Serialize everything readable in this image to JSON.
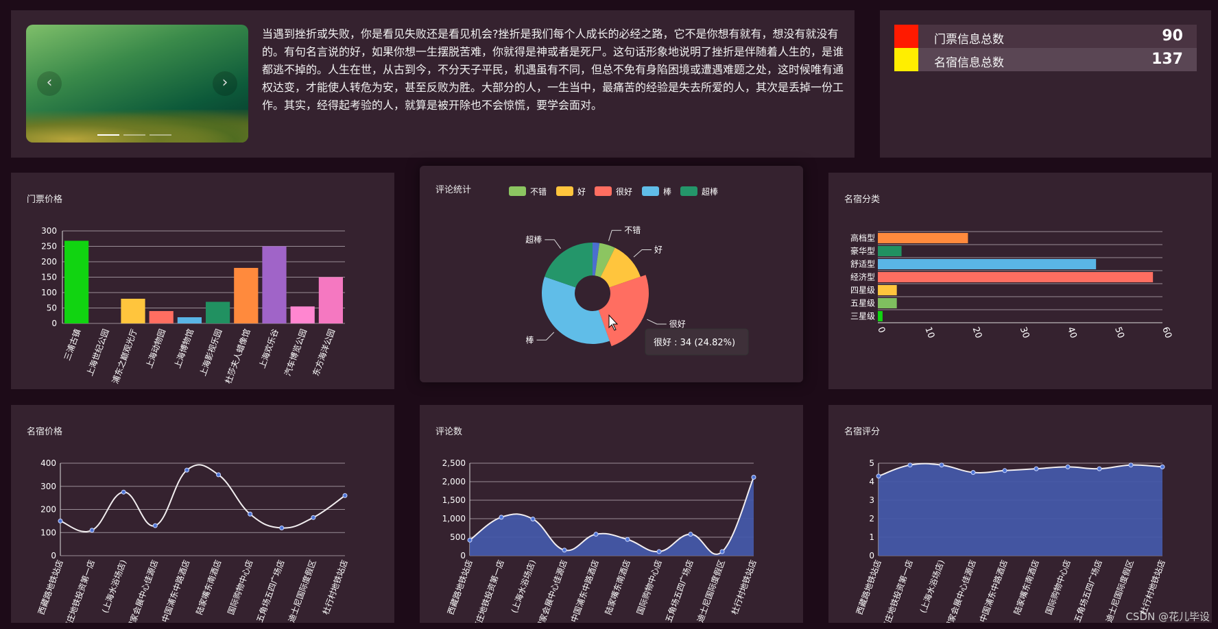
{
  "intro": {
    "text": "当遇到挫折或失败，你是看见失败还是看见机会?挫折是我们每个人成长的必经之路，它不是你想有就有，想没有就没有的。有句名言说的好，如果你想一生摆脱苦难，你就得是神或者是死尸。这句话形象地说明了挫折是伴随着人生的，是谁都逃不掉的。人生在世，从古到今，不分天子平民，机遇虽有不同，但总不免有身陷困境或遭遇难题之处，这时候唯有通权达变，才能使人转危为安，甚至反败为胜。大部分的人，一生当中，最痛苦的经验是失去所爱的人，其次是丢掉一份工作。其实，经得起考验的人，就算是被开除也不会惊慌，要学会面对。",
    "prev": "‹",
    "next": "›"
  },
  "stats": [
    {
      "label": "门票信息总数",
      "value": "90",
      "color": "#ff1a00"
    },
    {
      "label": "名宿信息总数",
      "value": "137",
      "color": "#ffee00"
    }
  ],
  "watermark": "CSDN @花儿毕设",
  "chart_data": [
    {
      "id": "ticket",
      "type": "bar",
      "title": "门票价格",
      "categories": [
        "三浦古镇",
        "上海世纪公园",
        "浦东之巅观光厅",
        "上海动物园",
        "上海博物馆",
        "上海影视乐园",
        "杜莎夫人蜡像馆",
        "上海欢乐谷",
        "汽车博览公园",
        "东方海洋公园"
      ],
      "values": [
        268,
        0,
        80,
        40,
        20,
        70,
        180,
        250,
        55,
        150
      ],
      "colors": [
        "#11d411",
        "#7fbf5f",
        "#ffc53d",
        "#ff6e61",
        "#5ab5e6",
        "#219161",
        "#ff8a3d",
        "#a064c8",
        "#ff86d0",
        "#f578c1"
      ],
      "ylim": [
        0,
        300
      ],
      "yticks": [
        0,
        50,
        100,
        150,
        200,
        250,
        300
      ]
    },
    {
      "id": "review",
      "type": "pie",
      "title": "评论统计",
      "legend": [
        "不错",
        "好",
        "很好",
        "棒",
        "超棒"
      ],
      "slices": [
        {
          "name": "",
          "value": 3,
          "color": "#4b6fcf"
        },
        {
          "name": "不错",
          "value": 7,
          "color": "#8cc561"
        },
        {
          "name": "好",
          "value": 17,
          "color": "#ffc53d"
        },
        {
          "name": "很好",
          "value": 34,
          "color": "#ff6e61"
        },
        {
          "name": "棒",
          "value": 49,
          "color": "#60bde8"
        },
        {
          "name": "超棒",
          "value": 27,
          "color": "#24966a"
        }
      ],
      "tooltip": "很好 : 34 (24.82%)"
    },
    {
      "id": "homestay_type",
      "type": "bar",
      "orientation": "horizontal",
      "title": "名宿分类",
      "categories": [
        "高档型",
        "豪华型",
        "舒适型",
        "经济型",
        "四星级",
        "五星级",
        "三星级"
      ],
      "values": [
        19,
        5,
        46,
        58,
        4,
        4,
        1
      ],
      "colors": [
        "#ff8a3d",
        "#219161",
        "#5ab5e6",
        "#ff6e61",
        "#ffc53d",
        "#7fbf5f",
        "#11d411"
      ],
      "xlim": [
        0,
        60
      ],
      "xticks": [
        0,
        10,
        20,
        30,
        40,
        50,
        60
      ]
    },
    {
      "id": "homestay_price",
      "type": "line",
      "title": "名宿价格",
      "categories": [
        "西藏路地铁站店",
        "莘庄地铁投资第一店",
        "(上海水浴场店)",
        "国家会展中心佳源店",
        "中国浦东中路酒店",
        "陆家嘴东南酒店",
        "国际购物中心店",
        "五角场五四广场店",
        "迪士尼国际度假区",
        "杜行村地铁站店"
      ],
      "values": [
        150,
        110,
        275,
        130,
        370,
        350,
        180,
        120,
        165,
        260
      ],
      "ylim": [
        0,
        400
      ],
      "yticks": [
        0,
        100,
        200,
        300,
        400
      ]
    },
    {
      "id": "comment_count",
      "type": "area",
      "title": "评论数",
      "categories": [
        "西藏路地铁站店",
        "莘庄地铁投资第一店",
        "(上海水浴场店)",
        "国家会展中心佳源店",
        "中国浦东中路酒店",
        "陆家嘴东南酒店",
        "国际购物中心店",
        "五角场五四广场店",
        "迪士尼国际度假区",
        "杜行村地铁站店"
      ],
      "values": [
        420,
        1040,
        990,
        150,
        580,
        440,
        110,
        580,
        110,
        2120
      ],
      "ylim": [
        0,
        2500
      ],
      "yticks": [
        "0",
        "500",
        "1,000",
        "1,500",
        "2,000",
        "2,500"
      ]
    },
    {
      "id": "homestay_score",
      "type": "area",
      "title": "名宿评分",
      "categories": [
        "西藏路地铁站店",
        "莘庄地铁投资第一店",
        "(上海水浴场店)",
        "国家会展中心佳源店",
        "中国浦东中路酒店",
        "陆家嘴东南酒店",
        "国际购物中心店",
        "五角场五四广场店",
        "迪士尼国际度假区",
        "杜行村地铁站店"
      ],
      "values": [
        4.3,
        4.9,
        4.9,
        4.5,
        4.6,
        4.7,
        4.8,
        4.7,
        4.9,
        4.8
      ],
      "ylim": [
        0,
        5
      ],
      "yticks": [
        0,
        1,
        2,
        3,
        4,
        5
      ]
    }
  ]
}
